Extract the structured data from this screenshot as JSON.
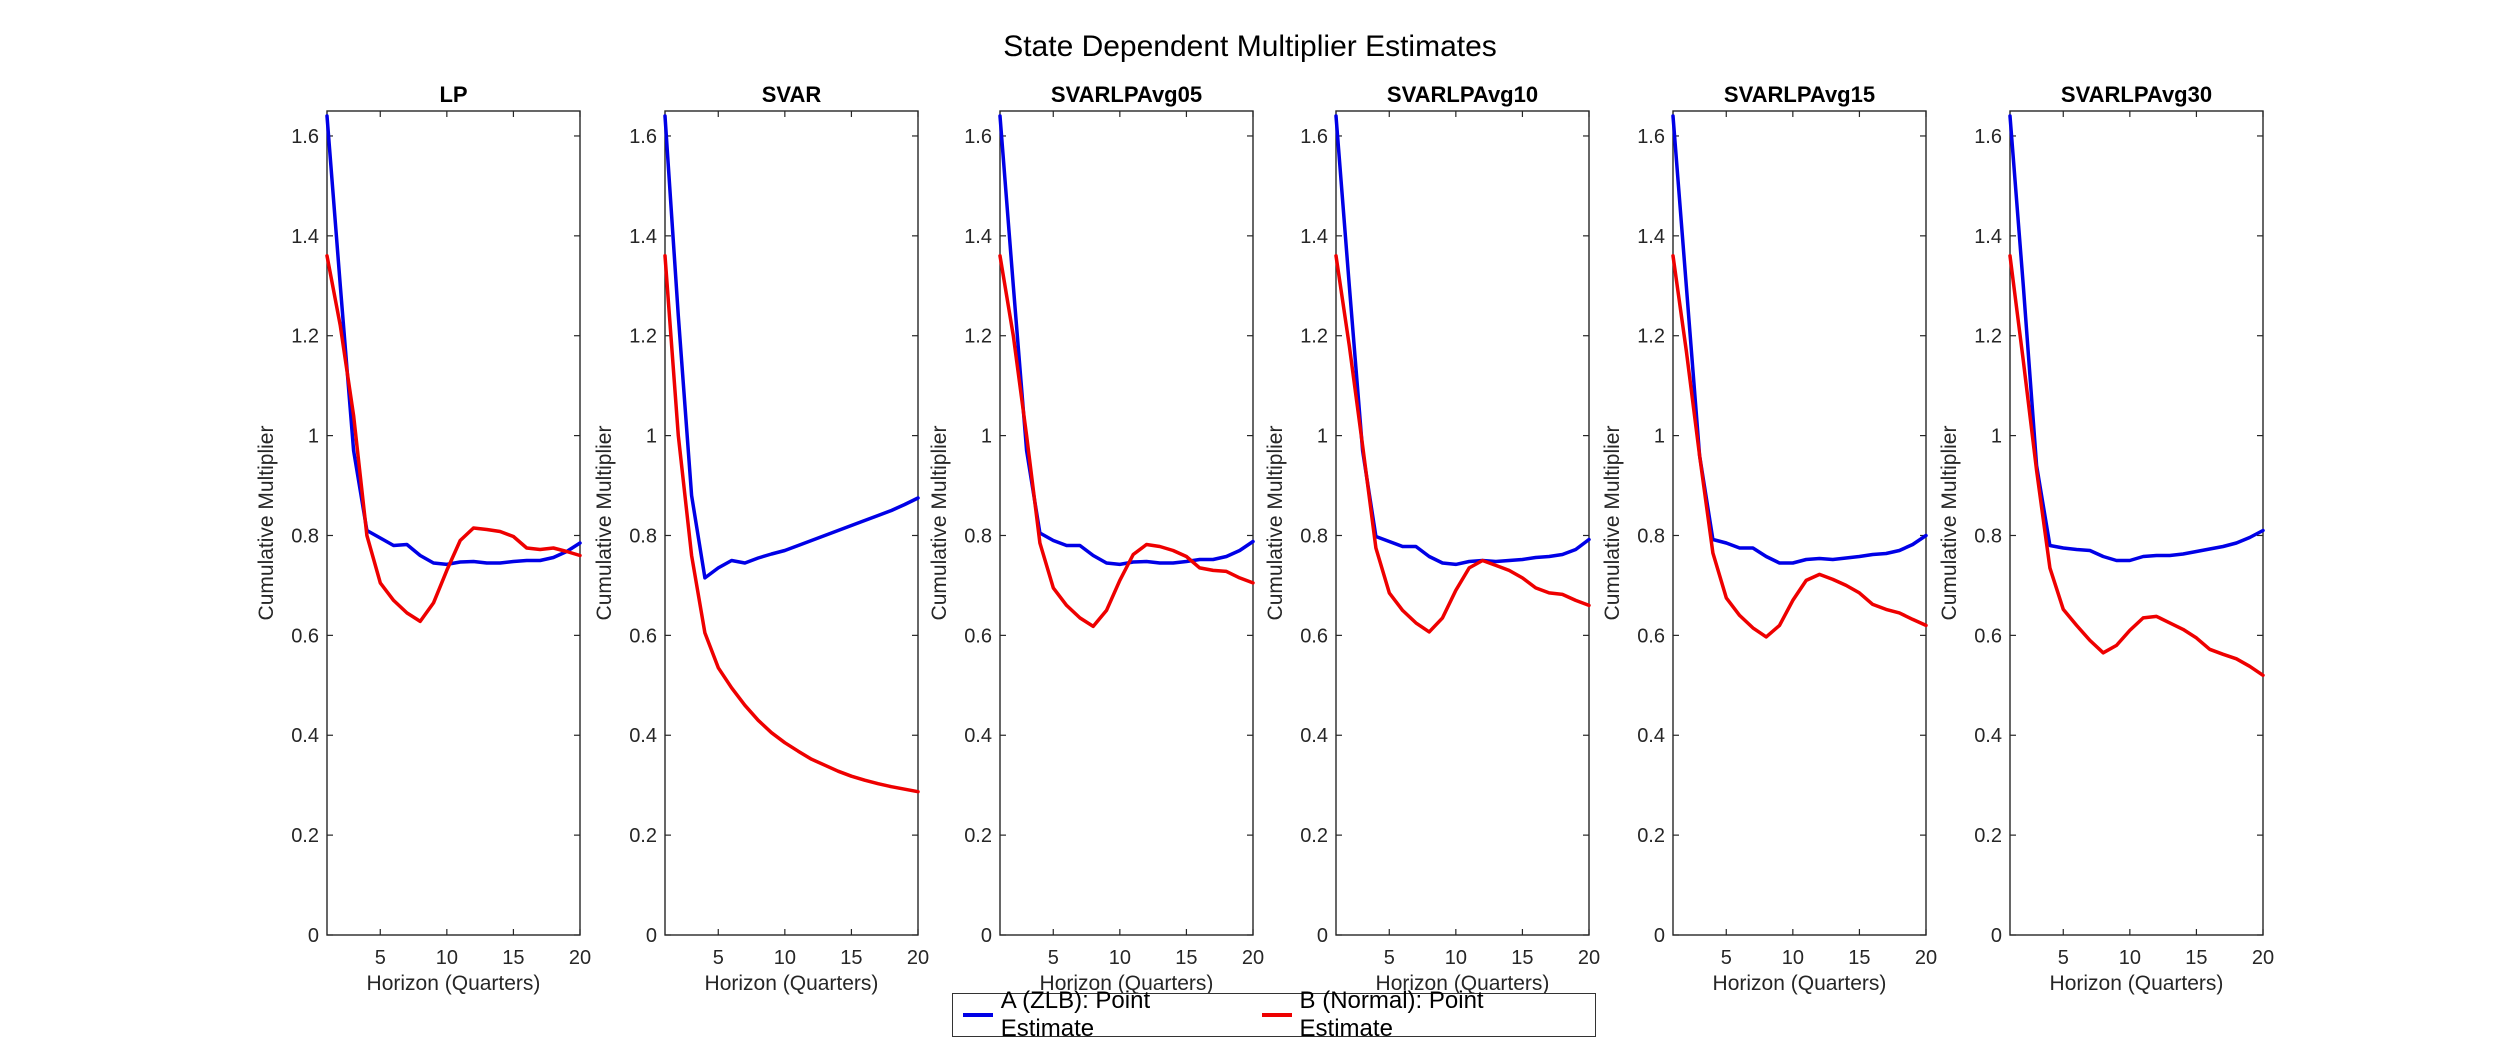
{
  "figure": {
    "title": "State Dependent Multiplier Estimates",
    "colors": {
      "zlb": "#0000e6",
      "normal": "#ee0000"
    }
  },
  "legend": [
    {
      "label": "A (ZLB): Point Estimate",
      "color": "#0000e6"
    },
    {
      "label": "B (Normal): Point Estimate",
      "color": "#ee0000"
    }
  ],
  "chart_data": [
    {
      "type": "line",
      "title": "LP",
      "xlabel": "Horizon (Quarters)",
      "ylabel": "Cumulative Multiplier",
      "xlim": [
        1,
        20
      ],
      "ylim": [
        0,
        1.65
      ],
      "xticks": [
        5,
        10,
        15,
        20
      ],
      "xtick_labels": [
        "5",
        "10",
        "15",
        "20"
      ],
      "yticks": [
        0,
        0.2,
        0.4,
        0.6,
        0.8,
        1,
        1.2,
        1.4,
        1.6
      ],
      "ytick_labels": [
        "0",
        "0.2",
        "0.4",
        "0.6",
        "0.8",
        "1",
        "1.2",
        "1.4",
        "1.6"
      ],
      "x": [
        1,
        2,
        3,
        4,
        5,
        6,
        7,
        8,
        9,
        10,
        11,
        12,
        13,
        14,
        15,
        16,
        17,
        18,
        19,
        20
      ],
      "series": [
        {
          "name": "A (ZLB): Point Estimate",
          "color": "#0000e6",
          "values": [
            1.64,
            1.3,
            0.97,
            0.81,
            0.795,
            0.78,
            0.782,
            0.76,
            0.745,
            0.742,
            0.747,
            0.748,
            0.745,
            0.745,
            0.748,
            0.75,
            0.75,
            0.756,
            0.768,
            0.785
          ]
        },
        {
          "name": "B (Normal): Point Estimate",
          "color": "#ee0000",
          "values": [
            1.36,
            1.22,
            1.04,
            0.8,
            0.705,
            0.67,
            0.645,
            0.628,
            0.665,
            0.73,
            0.79,
            0.815,
            0.812,
            0.808,
            0.798,
            0.775,
            0.772,
            0.775,
            0.768,
            0.76
          ]
        }
      ]
    },
    {
      "type": "line",
      "title": "SVAR",
      "xlabel": "Horizon (Quarters)",
      "ylabel": "Cumulative Multiplier",
      "xlim": [
        1,
        20
      ],
      "ylim": [
        0,
        1.65
      ],
      "xticks": [
        5,
        10,
        15,
        20
      ],
      "xtick_labels": [
        "5",
        "10",
        "15",
        "20"
      ],
      "yticks": [
        0,
        0.2,
        0.4,
        0.6,
        0.8,
        1,
        1.2,
        1.4,
        1.6
      ],
      "ytick_labels": [
        "0",
        "0.2",
        "0.4",
        "0.6",
        "0.8",
        "1",
        "1.2",
        "1.4",
        "1.6"
      ],
      "x": [
        1,
        2,
        3,
        4,
        5,
        6,
        7,
        8,
        9,
        10,
        11,
        12,
        13,
        14,
        15,
        16,
        17,
        18,
        19,
        20
      ],
      "series": [
        {
          "name": "A (ZLB): Point Estimate",
          "color": "#0000e6",
          "values": [
            1.64,
            1.24,
            0.88,
            0.715,
            0.735,
            0.75,
            0.745,
            0.755,
            0.763,
            0.77,
            0.78,
            0.79,
            0.8,
            0.81,
            0.82,
            0.83,
            0.84,
            0.85,
            0.862,
            0.875
          ]
        },
        {
          "name": "B (Normal): Point Estimate",
          "color": "#ee0000",
          "values": [
            1.36,
            1.0,
            0.76,
            0.605,
            0.535,
            0.495,
            0.46,
            0.43,
            0.405,
            0.385,
            0.368,
            0.352,
            0.34,
            0.328,
            0.318,
            0.31,
            0.303,
            0.297,
            0.292,
            0.287
          ]
        }
      ]
    },
    {
      "type": "line",
      "title": "SVARLPAvg05",
      "xlabel": "Horizon (Quarters)",
      "ylabel": "Cumulative Multiplier",
      "xlim": [
        1,
        20
      ],
      "ylim": [
        0,
        1.65
      ],
      "xticks": [
        5,
        10,
        15,
        20
      ],
      "xtick_labels": [
        "5",
        "10",
        "15",
        "20"
      ],
      "yticks": [
        0,
        0.2,
        0.4,
        0.6,
        0.8,
        1,
        1.2,
        1.4,
        1.6
      ],
      "ytick_labels": [
        "0",
        "0.2",
        "0.4",
        "0.6",
        "0.8",
        "1",
        "1.2",
        "1.4",
        "1.6"
      ],
      "x": [
        1,
        2,
        3,
        4,
        5,
        6,
        7,
        8,
        9,
        10,
        11,
        12,
        13,
        14,
        15,
        16,
        17,
        18,
        19,
        20
      ],
      "series": [
        {
          "name": "A (ZLB): Point Estimate",
          "color": "#0000e6",
          "values": [
            1.64,
            1.3,
            0.97,
            0.805,
            0.79,
            0.78,
            0.78,
            0.76,
            0.745,
            0.742,
            0.747,
            0.748,
            0.745,
            0.745,
            0.748,
            0.752,
            0.752,
            0.758,
            0.77,
            0.788
          ]
        },
        {
          "name": "B (Normal): Point Estimate",
          "color": "#ee0000",
          "values": [
            1.36,
            1.2,
            1.0,
            0.785,
            0.695,
            0.66,
            0.635,
            0.618,
            0.65,
            0.71,
            0.762,
            0.782,
            0.778,
            0.77,
            0.758,
            0.735,
            0.73,
            0.728,
            0.715,
            0.705
          ]
        }
      ]
    },
    {
      "type": "line",
      "title": "SVARLPAvg10",
      "xlabel": "Horizon (Quarters)",
      "ylabel": "Cumulative Multiplier",
      "xlim": [
        1,
        20
      ],
      "ylim": [
        0,
        1.65
      ],
      "xticks": [
        5,
        10,
        15,
        20
      ],
      "xtick_labels": [
        "5",
        "10",
        "15",
        "20"
      ],
      "yticks": [
        0,
        0.2,
        0.4,
        0.6,
        0.8,
        1,
        1.2,
        1.4,
        1.6
      ],
      "ytick_labels": [
        "0",
        "0.2",
        "0.4",
        "0.6",
        "0.8",
        "1",
        "1.2",
        "1.4",
        "1.6"
      ],
      "x": [
        1,
        2,
        3,
        4,
        5,
        6,
        7,
        8,
        9,
        10,
        11,
        12,
        13,
        14,
        15,
        16,
        17,
        18,
        19,
        20
      ],
      "series": [
        {
          "name": "A (ZLB): Point Estimate",
          "color": "#0000e6",
          "values": [
            1.64,
            1.3,
            0.97,
            0.798,
            0.788,
            0.778,
            0.778,
            0.758,
            0.745,
            0.742,
            0.748,
            0.75,
            0.748,
            0.75,
            0.752,
            0.756,
            0.758,
            0.762,
            0.772,
            0.792
          ]
        },
        {
          "name": "B (Normal): Point Estimate",
          "color": "#ee0000",
          "values": [
            1.36,
            1.18,
            0.98,
            0.775,
            0.685,
            0.65,
            0.625,
            0.607,
            0.635,
            0.69,
            0.735,
            0.75,
            0.74,
            0.73,
            0.715,
            0.695,
            0.685,
            0.682,
            0.67,
            0.66
          ]
        }
      ]
    },
    {
      "type": "line",
      "title": "SVARLPAvg15",
      "xlabel": "Horizon (Quarters)",
      "ylabel": "Cumulative Multiplier",
      "xlim": [
        1,
        20
      ],
      "ylim": [
        0,
        1.65
      ],
      "xticks": [
        5,
        10,
        15,
        20
      ],
      "xtick_labels": [
        "5",
        "10",
        "15",
        "20"
      ],
      "yticks": [
        0,
        0.2,
        0.4,
        0.6,
        0.8,
        1,
        1.2,
        1.4,
        1.6
      ],
      "ytick_labels": [
        "0",
        "0.2",
        "0.4",
        "0.6",
        "0.8",
        "1",
        "1.2",
        "1.4",
        "1.6"
      ],
      "x": [
        1,
        2,
        3,
        4,
        5,
        6,
        7,
        8,
        9,
        10,
        11,
        12,
        13,
        14,
        15,
        16,
        17,
        18,
        19,
        20
      ],
      "series": [
        {
          "name": "A (ZLB): Point Estimate",
          "color": "#0000e6",
          "values": [
            1.64,
            1.3,
            0.96,
            0.792,
            0.785,
            0.775,
            0.775,
            0.758,
            0.745,
            0.745,
            0.752,
            0.754,
            0.752,
            0.755,
            0.758,
            0.762,
            0.764,
            0.77,
            0.782,
            0.8
          ]
        },
        {
          "name": "B (Normal): Point Estimate",
          "color": "#ee0000",
          "values": [
            1.36,
            1.17,
            0.96,
            0.765,
            0.675,
            0.64,
            0.615,
            0.597,
            0.62,
            0.67,
            0.71,
            0.722,
            0.712,
            0.7,
            0.685,
            0.662,
            0.652,
            0.645,
            0.632,
            0.62
          ]
        }
      ]
    },
    {
      "type": "line",
      "title": "SVARLPAvg30",
      "xlabel": "Horizon (Quarters)",
      "ylabel": "Cumulative Multiplier",
      "xlim": [
        1,
        20
      ],
      "ylim": [
        0,
        1.65
      ],
      "xticks": [
        5,
        10,
        15,
        20
      ],
      "xtick_labels": [
        "5",
        "10",
        "15",
        "20"
      ],
      "yticks": [
        0,
        0.2,
        0.4,
        0.6,
        0.8,
        1,
        1.2,
        1.4,
        1.6
      ],
      "ytick_labels": [
        "0",
        "0.2",
        "0.4",
        "0.6",
        "0.8",
        "1",
        "1.2",
        "1.4",
        "1.6"
      ],
      "x": [
        1,
        2,
        3,
        4,
        5,
        6,
        7,
        8,
        9,
        10,
        11,
        12,
        13,
        14,
        15,
        16,
        17,
        18,
        19,
        20
      ],
      "series": [
        {
          "name": "A (ZLB): Point Estimate",
          "color": "#0000e6",
          "values": [
            1.64,
            1.3,
            0.94,
            0.78,
            0.775,
            0.772,
            0.77,
            0.758,
            0.75,
            0.75,
            0.758,
            0.76,
            0.76,
            0.763,
            0.768,
            0.773,
            0.778,
            0.785,
            0.796,
            0.81
          ]
        },
        {
          "name": "B (Normal): Point Estimate",
          "color": "#ee0000",
          "values": [
            1.36,
            1.15,
            0.93,
            0.735,
            0.652,
            0.62,
            0.59,
            0.565,
            0.58,
            0.61,
            0.635,
            0.638,
            0.625,
            0.612,
            0.595,
            0.572,
            0.562,
            0.553,
            0.538,
            0.52
          ]
        }
      ]
    }
  ]
}
